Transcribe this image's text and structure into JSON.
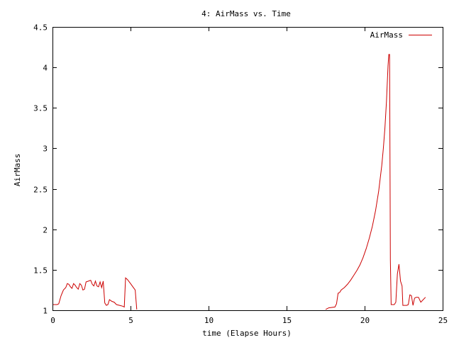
{
  "chart_data": {
    "type": "line",
    "title": "4: AirMass vs. Time",
    "xlabel": "time (Elapse Hours)",
    "ylabel": "AirMass",
    "xlim": [
      0,
      25
    ],
    "ylim": [
      1,
      4.5
    ],
    "x_ticks": [
      0,
      5,
      10,
      15,
      20,
      25
    ],
    "x_tick_labels": [
      "0",
      "5",
      "10",
      "15",
      "20",
      "25"
    ],
    "y_ticks": [
      1,
      1.5,
      2,
      2.5,
      3,
      3.5,
      4,
      4.5
    ],
    "y_tick_labels": [
      "1",
      "1.5",
      "2",
      "2.5",
      "3",
      "3.5",
      "4",
      "4.5"
    ],
    "grid": false,
    "legend_position": "top-right",
    "series": [
      {
        "name": "AirMass",
        "color": "#cc0000",
        "segments": [
          [
            [
              0.0,
              1.07
            ],
            [
              0.3,
              1.07
            ],
            [
              0.4,
              1.08
            ],
            [
              0.55,
              1.18
            ],
            [
              0.7,
              1.25
            ],
            [
              0.85,
              1.28
            ],
            [
              0.95,
              1.33
            ],
            [
              1.05,
              1.32
            ],
            [
              1.15,
              1.29
            ],
            [
              1.25,
              1.27
            ],
            [
              1.35,
              1.33
            ],
            [
              1.45,
              1.31
            ],
            [
              1.55,
              1.28
            ],
            [
              1.65,
              1.26
            ],
            [
              1.75,
              1.33
            ],
            [
              1.85,
              1.31
            ],
            [
              1.95,
              1.25
            ],
            [
              2.05,
              1.26
            ],
            [
              2.15,
              1.35
            ],
            [
              2.3,
              1.36
            ],
            [
              2.45,
              1.37
            ],
            [
              2.55,
              1.32
            ],
            [
              2.65,
              1.3
            ],
            [
              2.75,
              1.36
            ],
            [
              2.85,
              1.3
            ],
            [
              2.95,
              1.29
            ],
            [
              3.05,
              1.35
            ],
            [
              3.15,
              1.28
            ],
            [
              3.25,
              1.36
            ],
            [
              3.35,
              1.09
            ],
            [
              3.45,
              1.06
            ],
            [
              3.55,
              1.07
            ],
            [
              3.65,
              1.13
            ],
            [
              3.8,
              1.11
            ],
            [
              3.95,
              1.1
            ],
            [
              4.1,
              1.07
            ],
            [
              4.3,
              1.06
            ],
            [
              4.5,
              1.05
            ],
            [
              4.6,
              1.04
            ],
            [
              4.68,
              1.4
            ],
            [
              4.8,
              1.38
            ],
            [
              5.0,
              1.33
            ],
            [
              5.15,
              1.29
            ],
            [
              5.3,
              1.25
            ],
            [
              5.4,
              1.01
            ]
          ],
          [
            [
              17.5,
              1.01
            ],
            [
              17.7,
              1.03
            ],
            [
              18.1,
              1.04
            ],
            [
              18.2,
              1.08
            ],
            [
              18.3,
              1.21
            ],
            [
              18.4,
              1.22
            ],
            [
              18.5,
              1.25
            ],
            [
              18.7,
              1.28
            ],
            [
              18.9,
              1.32
            ],
            [
              19.1,
              1.37
            ],
            [
              19.3,
              1.43
            ],
            [
              19.5,
              1.49
            ],
            [
              19.7,
              1.56
            ],
            [
              19.9,
              1.65
            ],
            [
              20.1,
              1.76
            ],
            [
              20.3,
              1.89
            ],
            [
              20.5,
              2.04
            ],
            [
              20.7,
              2.23
            ],
            [
              20.9,
              2.47
            ],
            [
              21.1,
              2.79
            ],
            [
              21.2,
              3.0
            ],
            [
              21.3,
              3.25
            ],
            [
              21.4,
              3.58
            ],
            [
              21.5,
              4.02
            ],
            [
              21.55,
              4.16
            ],
            [
              21.6,
              4.16
            ],
            [
              21.65,
              1.62
            ],
            [
              21.7,
              1.07
            ],
            [
              21.8,
              1.07
            ],
            [
              21.9,
              1.07
            ],
            [
              22.0,
              1.1
            ],
            [
              22.1,
              1.45
            ],
            [
              22.2,
              1.57
            ],
            [
              22.3,
              1.36
            ],
            [
              22.4,
              1.3
            ],
            [
              22.45,
              1.06
            ],
            [
              22.6,
              1.06
            ],
            [
              22.7,
              1.06
            ],
            [
              22.8,
              1.07
            ],
            [
              22.9,
              1.19
            ],
            [
              23.0,
              1.18
            ],
            [
              23.1,
              1.06
            ],
            [
              23.2,
              1.15
            ],
            [
              23.3,
              1.16
            ],
            [
              23.45,
              1.16
            ],
            [
              23.6,
              1.1
            ],
            [
              23.9,
              1.16
            ]
          ]
        ]
      }
    ]
  }
}
